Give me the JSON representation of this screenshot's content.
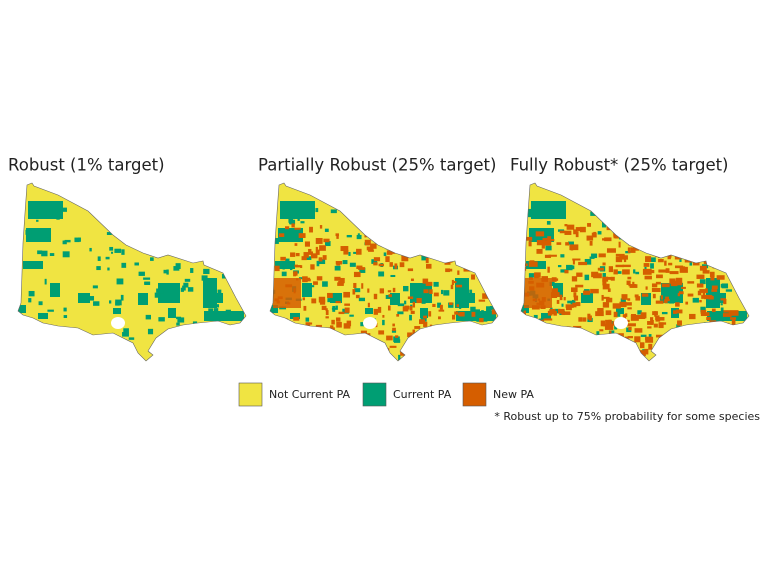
{
  "panels": [
    {
      "title": "Robust (1% target)"
    },
    {
      "title": "Partially Robust (25% target)"
    },
    {
      "title": "Fully Robust* (25% target)"
    }
  ],
  "legend": [
    {
      "label": "Not Current PA",
      "color": "#f0e442"
    },
    {
      "label": "Current PA",
      "color": "#009e73"
    },
    {
      "label": "New PA",
      "color": "#d55e00"
    }
  ],
  "footnote": "* Robust up to 75% probability for some species"
}
